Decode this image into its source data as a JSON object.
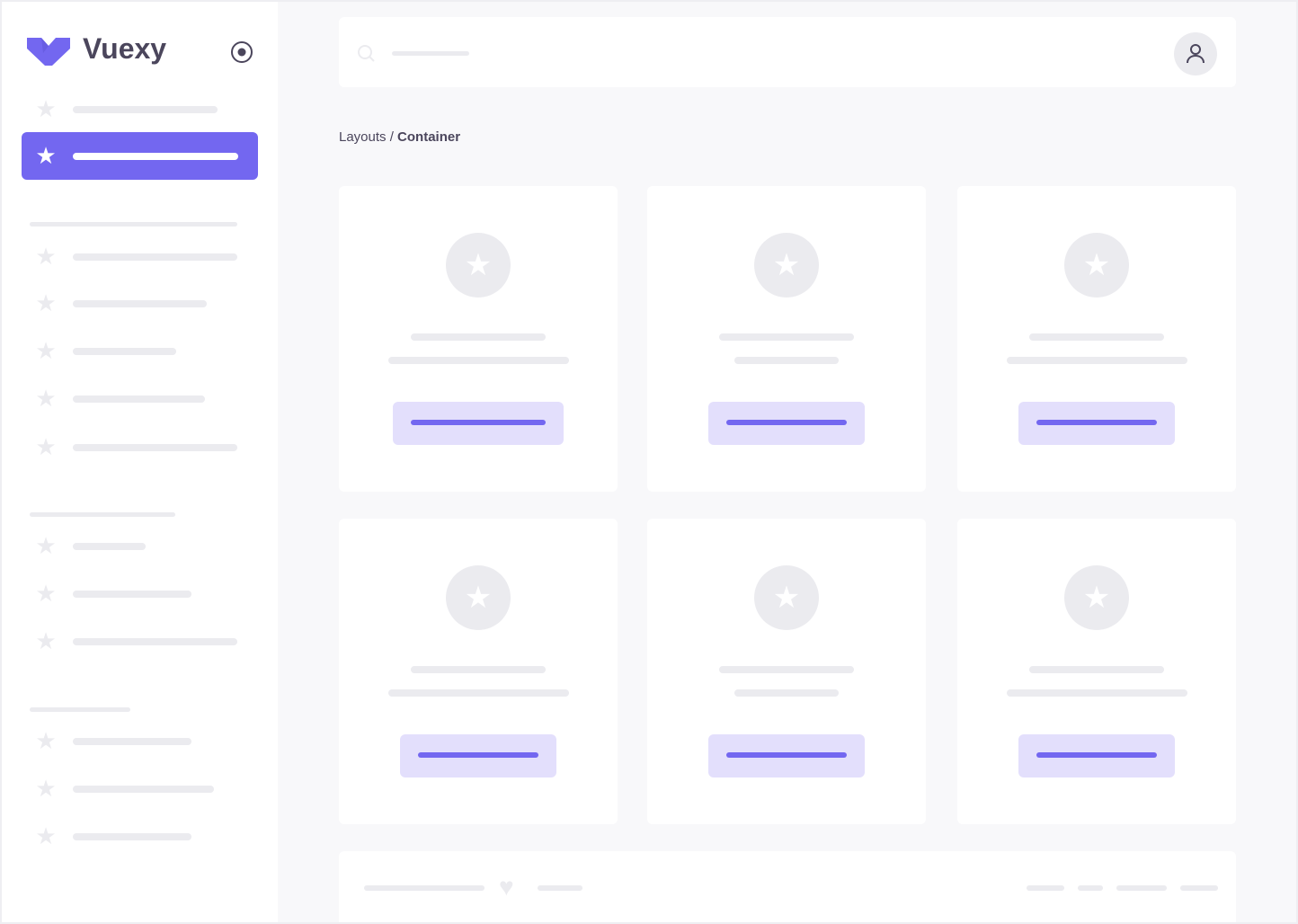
{
  "brand": {
    "name": "Vuexy",
    "color": "#7367f0"
  },
  "breadcrumb": {
    "parent": "Layouts /",
    "current": "Container"
  },
  "colors": {
    "accent": "#7367f0",
    "accent_light": "#e3dffc",
    "placeholder": "#ebebef",
    "text": "#4b465c"
  },
  "icons": {
    "logo": "vuexy-logo",
    "toggle": "radio-circle-icon",
    "nav": "star-icon",
    "search": "search-icon",
    "user": "user-icon",
    "footer": "heart-icon"
  }
}
